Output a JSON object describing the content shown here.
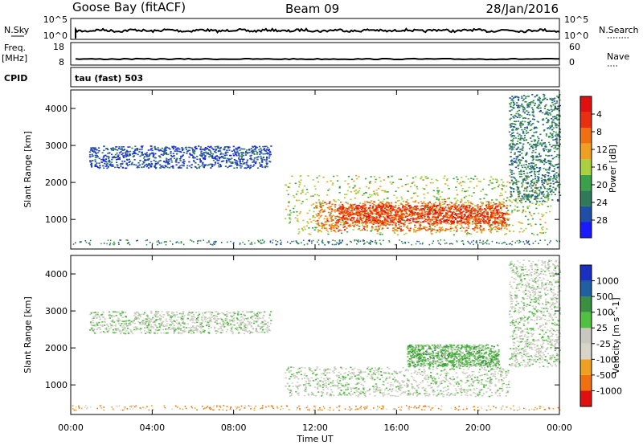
{
  "header": {
    "station": "Goose Bay (fitACF)",
    "beam": "Beam 09",
    "date": "28/Jan/2016"
  },
  "panels": {
    "nsky_label": "N.Sky",
    "nsearch_label": "N.Search",
    "nsky_ticks": [
      "10^5",
      "10^0"
    ],
    "nsearch_ticks": [
      "10^5",
      "10^0"
    ],
    "freq_label": "Freq.",
    "freq_unit": "[MHz]",
    "freq_ticks": [
      "18",
      "8"
    ],
    "nave_label": "Nave",
    "nave_ticks": [
      "60",
      "0"
    ],
    "cpid_label": "CPID",
    "cpid_value": "tau (fast) 503"
  },
  "colors": {
    "power": [
      "#1a1aff",
      "#1f4ea8",
      "#2f7a5a",
      "#3aa04a",
      "#a8d040",
      "#f0a020",
      "#f07010",
      "#e83010",
      "#e01010"
    ],
    "velocity": [
      "#e01010",
      "#f07010",
      "#f0a020",
      "#d8d4c8",
      "#c8c8c0",
      "#50c040",
      "#3a9040",
      "#2060a0",
      "#1a30c0"
    ],
    "grey_scatter": "#c8c8c0"
  },
  "chart_data": [
    {
      "type": "heatmap",
      "name": "power",
      "ylabel": "Slant Range [km]",
      "xlabel": "Time UT",
      "x_ticks": [
        "00:00",
        "04:00",
        "08:00",
        "12:00",
        "16:00",
        "20:00",
        "00:00"
      ],
      "y_ticks": [
        1000,
        2000,
        3000,
        4000
      ],
      "ylim": [
        200,
        4500
      ],
      "colorbar_label": "Power [dB]",
      "colorbar_ticks": [
        "4",
        "8",
        "12",
        "16",
        "20",
        "24",
        "28"
      ],
      "regions": [
        {
          "t0": 0.9,
          "t1": 9.8,
          "r0": 2400,
          "r1": 3000,
          "level": 1
        },
        {
          "t0": 10.5,
          "t1": 23.6,
          "r0": 600,
          "r1": 2200,
          "level": 4
        },
        {
          "t0": 12.0,
          "t1": 21.5,
          "r0": 700,
          "r1": 1500,
          "level": 6
        },
        {
          "t0": 13.0,
          "t1": 21.3,
          "r0": 900,
          "r1": 1400,
          "level": 7
        },
        {
          "t0": 21.5,
          "t1": 24.0,
          "r0": 1500,
          "r1": 4400,
          "level": 2
        }
      ]
    },
    {
      "type": "heatmap",
      "name": "velocity",
      "ylabel": "Slant Range [km]",
      "xlabel": "Time UT",
      "x_ticks": [
        "00:00",
        "04:00",
        "08:00",
        "12:00",
        "16:00",
        "20:00",
        "00:00"
      ],
      "y_ticks": [
        1000,
        2000,
        3000,
        4000
      ],
      "ylim": [
        200,
        4500
      ],
      "colorbar_label": "Velocity [m s^-1]",
      "colorbar_ticks": [
        "1000",
        "500",
        "100",
        "25",
        "-25",
        "-100",
        "-500",
        "-1000"
      ],
      "regions": [
        {
          "t0": 0.9,
          "t1": 9.8,
          "r0": 2400,
          "r1": 3000,
          "level": 4
        },
        {
          "t0": 10.5,
          "t1": 21.5,
          "r0": 700,
          "r1": 1500,
          "level": 4
        },
        {
          "t0": 16.5,
          "t1": 21.0,
          "r0": 1500,
          "r1": 2100,
          "level": 5
        },
        {
          "t0": 21.5,
          "t1": 24.0,
          "r0": 1500,
          "r1": 4400,
          "level": 4
        }
      ]
    }
  ]
}
